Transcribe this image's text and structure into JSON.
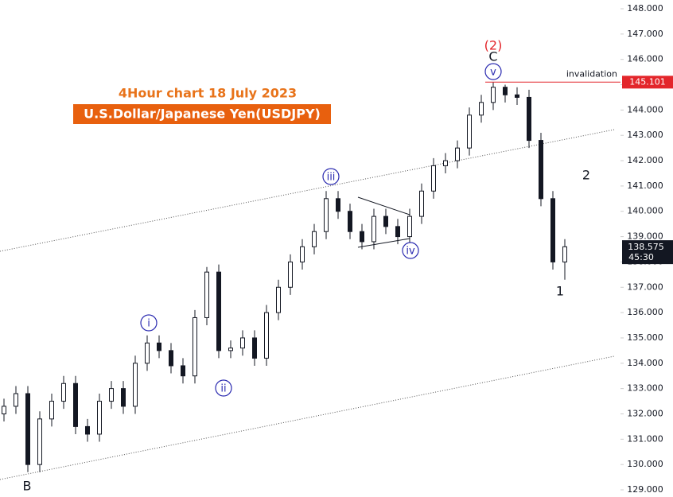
{
  "chart_data": {
    "type": "candlestick",
    "title": "4Hour chart 18 July 2023",
    "subtitle": "U.S.Dollar/Japanese Yen(USDJPY)",
    "color": "#131722",
    "open": [
      132.0,
      132.3,
      132.8,
      130.0,
      131.8,
      132.5,
      133.2,
      131.5,
      131.2,
      132.5,
      133.0,
      132.3,
      134.0,
      134.8,
      134.5,
      133.9,
      133.5,
      135.8,
      137.6,
      134.5,
      134.6,
      135.0,
      134.2,
      136.0,
      137.0,
      138.0,
      138.6,
      139.2,
      140.5,
      140.0,
      139.2,
      138.8,
      139.8,
      139.4,
      139.0,
      139.8,
      140.8,
      141.8,
      142.0,
      142.5,
      143.8,
      144.3,
      144.9,
      144.6,
      144.5,
      142.8,
      140.5,
      138.0
    ],
    "close": [
      132.3,
      132.8,
      130.0,
      131.8,
      132.5,
      133.2,
      131.5,
      131.2,
      132.5,
      133.0,
      132.3,
      134.0,
      134.8,
      134.5,
      133.9,
      133.5,
      135.8,
      137.6,
      134.5,
      134.6,
      135.0,
      134.2,
      136.0,
      137.0,
      138.0,
      138.6,
      139.2,
      140.5,
      140.0,
      139.2,
      138.8,
      139.8,
      139.4,
      139.0,
      139.8,
      140.8,
      141.8,
      142.0,
      142.5,
      143.8,
      144.3,
      144.9,
      144.6,
      144.5,
      142.8,
      140.5,
      138.0,
      138.6
    ],
    "high": [
      132.6,
      133.1,
      133.1,
      132.1,
      132.8,
      133.5,
      133.5,
      131.8,
      132.8,
      133.3,
      133.3,
      134.3,
      135.1,
      135.1,
      134.8,
      134.2,
      136.1,
      137.8,
      137.9,
      134.9,
      135.3,
      135.3,
      136.3,
      137.3,
      138.3,
      138.9,
      139.5,
      140.8,
      140.8,
      140.3,
      139.5,
      140.1,
      140.1,
      139.7,
      140.1,
      141.1,
      142.1,
      142.3,
      142.8,
      144.1,
      144.6,
      145.1,
      145.0,
      144.9,
      144.8,
      143.1,
      140.8,
      138.9
    ],
    "low": [
      131.7,
      132.0,
      129.7,
      129.7,
      131.5,
      132.2,
      131.2,
      130.9,
      130.9,
      132.2,
      132.0,
      132.0,
      133.7,
      134.2,
      133.6,
      133.2,
      133.2,
      135.5,
      134.2,
      134.2,
      134.3,
      133.9,
      133.9,
      135.7,
      136.7,
      137.7,
      138.3,
      138.9,
      139.7,
      138.9,
      138.5,
      138.5,
      139.1,
      138.7,
      138.7,
      139.5,
      140.5,
      141.5,
      141.7,
      142.2,
      143.5,
      144.0,
      144.3,
      144.2,
      142.5,
      140.2,
      137.7,
      137.3
    ],
    "ylim": [
      129,
      148
    ],
    "yticks": [
      {
        "value": 129,
        "label": "129.000"
      },
      {
        "value": 130,
        "label": "130.000"
      },
      {
        "value": 131,
        "label": "131.000"
      },
      {
        "value": 132,
        "label": "132.000"
      },
      {
        "value": 133,
        "label": "133.000"
      },
      {
        "value": 134,
        "label": "134.000"
      },
      {
        "value": 135,
        "label": "135.000"
      },
      {
        "value": 136,
        "label": "136.000"
      },
      {
        "value": 137,
        "label": "137.000"
      },
      {
        "value": 138,
        "label": "138.000"
      },
      {
        "value": 139,
        "label": "139.000"
      },
      {
        "value": 140,
        "label": "140.000"
      },
      {
        "value": 141,
        "label": "141.000"
      },
      {
        "value": 142,
        "label": "142.000"
      },
      {
        "value": 143,
        "label": "143.000"
      },
      {
        "value": 144,
        "label": "144.000"
      },
      {
        "value": 145,
        "label": "145.000"
      },
      {
        "value": 146,
        "label": "146.000"
      },
      {
        "value": 147,
        "label": "147.000"
      },
      {
        "value": 148,
        "label": "148.000"
      }
    ],
    "invalidation": {
      "value": 145.101,
      "label": "145.101",
      "text": "invalidation"
    },
    "last_price": {
      "value": 138.575,
      "label": "138.575",
      "countdown": "45:30"
    },
    "annotations": [
      "i",
      "ii",
      "iii",
      "iv",
      "v",
      "C",
      "(2)",
      "2",
      "1",
      "B"
    ]
  }
}
